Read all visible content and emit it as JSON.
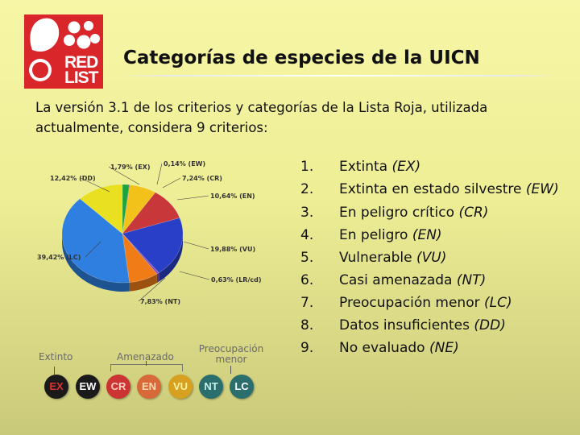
{
  "logo": {
    "line1": "RED",
    "line2": "LIST",
    "seal": "IUCN"
  },
  "title": "Categorías de especies de la UICN",
  "intro": "La versión 3.1 de los criterios y categorías de la Lista Roja, utilizada actualmente, considera 9 criterios:",
  "list": [
    {
      "num": "1.",
      "text": "Extinta ",
      "code": "(EX)"
    },
    {
      "num": "2.",
      "text": "Extinta en estado silvestre ",
      "code": "(EW)"
    },
    {
      "num": "3.",
      "text": "En peligro crítico ",
      "code": "(CR)"
    },
    {
      "num": "4.",
      "text": "En peligro ",
      "code": "(EN)"
    },
    {
      "num": "5.",
      "text": "Vulnerable ",
      "code": "(VU)"
    },
    {
      "num": "6.",
      "text": "Casi amenazada ",
      "code": "(NT)"
    },
    {
      "num": "7.",
      "text": "Preocupación menor ",
      "code": "(LC)"
    },
    {
      "num": "8.",
      "text": "Datos insuficientes ",
      "code": "(DD)"
    },
    {
      "num": "9.",
      "text": "No evaluado ",
      "code": "(NE)"
    }
  ],
  "chart_data": {
    "type": "pie",
    "title": "",
    "slices": [
      {
        "label": "1,79% (EX)",
        "value": 1.79,
        "color": "#1aa43a"
      },
      {
        "label": "0,14% (EW)",
        "value": 0.14,
        "color": "#4a2a7a"
      },
      {
        "label": "7,24% (CR)",
        "value": 7.24,
        "color": "#f2c21a"
      },
      {
        "label": "10,64% (EN)",
        "value": 10.64,
        "color": "#c8383a"
      },
      {
        "label": "19,88% (VU)",
        "value": 19.88,
        "color": "#2a3fc8"
      },
      {
        "label": "0,63% (LR/cd)",
        "value": 0.63,
        "color": "#8a4fb8"
      },
      {
        "label": "7,83% (NT)",
        "value": 7.83,
        "color": "#f07c18"
      },
      {
        "label": "39,42% (LC)",
        "value": 39.42,
        "color": "#2e7fe0"
      },
      {
        "label": "12,42% (DD)",
        "value": 12.42,
        "color": "#e8e020"
      }
    ]
  },
  "legend": {
    "groups": {
      "extinct": "Extinto",
      "threatened": "Amenazado",
      "least_concern": "Preocupación menor"
    },
    "badges": [
      {
        "code": "EX",
        "color": "#1a1a1a",
        "text_color": "#e03030"
      },
      {
        "code": "EW",
        "color": "#1a1a1a",
        "text_color": "#ffffff"
      },
      {
        "code": "CR",
        "color": "#cc3333",
        "text_color": "#ffd0c0"
      },
      {
        "code": "EN",
        "color": "#d86a3a",
        "text_color": "#ffd9b0"
      },
      {
        "code": "VU",
        "color": "#d8a020",
        "text_color": "#fff4a0"
      },
      {
        "code": "NT",
        "color": "#2a6e6e",
        "text_color": "#c8f0e8"
      },
      {
        "code": "LC",
        "color": "#2a6e6e",
        "text_color": "#ffffff"
      }
    ]
  }
}
